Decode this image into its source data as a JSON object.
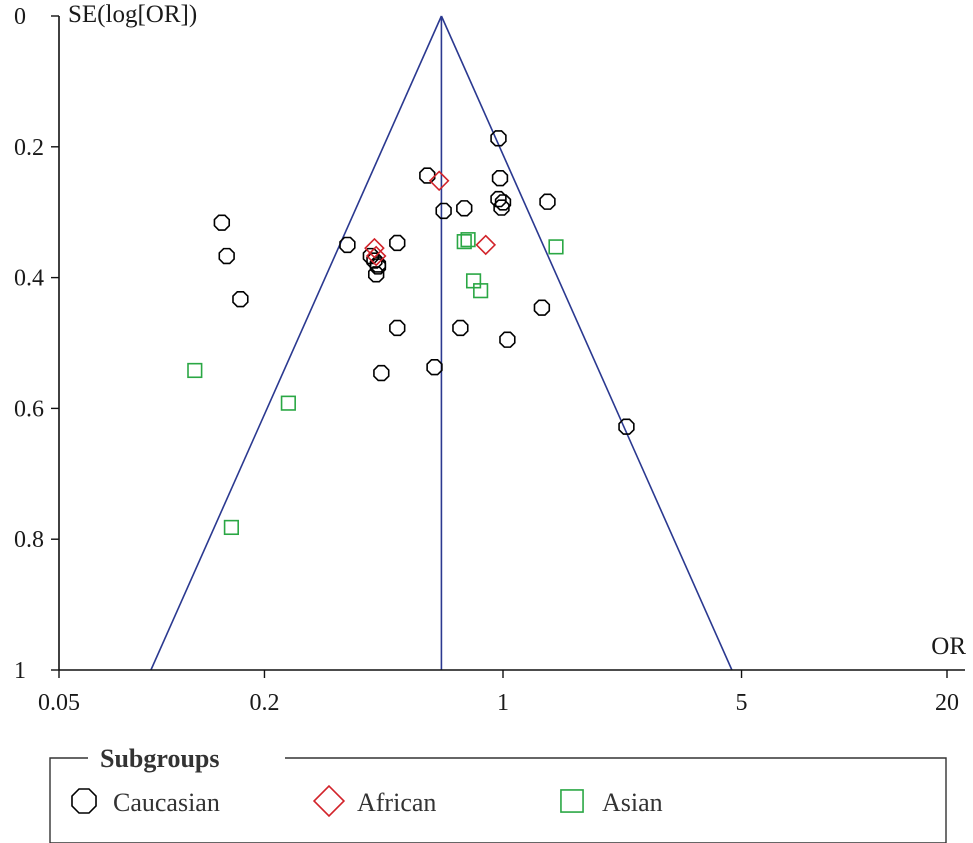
{
  "chart_data": {
    "type": "scatter",
    "ylabel": "SE(log[OR])",
    "xlabel": "OR",
    "x_scale": "log",
    "xlim": [
      0.05,
      20
    ],
    "ylim": [
      0,
      1
    ],
    "y_inverted": true,
    "x_ticks": [
      {
        "value": 0.05,
        "label": "0.05"
      },
      {
        "value": 0.2,
        "label": "0.2"
      },
      {
        "value": 1,
        "label": "1"
      },
      {
        "value": 5,
        "label": "5"
      },
      {
        "value": 20,
        "label": "20"
      }
    ],
    "y_ticks": [
      {
        "value": 0,
        "label": "0"
      },
      {
        "value": 0.2,
        "label": "0.2"
      },
      {
        "value": 0.4,
        "label": "0.4"
      },
      {
        "value": 0.6,
        "label": "0.6"
      },
      {
        "value": 0.8,
        "label": "0.8"
      },
      {
        "value": 1,
        "label": "1"
      }
    ],
    "funnel": {
      "pooled_or": 0.66,
      "se_max": 1,
      "color": "#2b3990"
    },
    "legend": {
      "title": "Subgroups",
      "placement": "bottom"
    },
    "series": [
      {
        "name": "Caucasian",
        "marker": "octagon",
        "color": "#000000",
        "points": [
          [
            0.97,
            0.187
          ],
          [
            0.98,
            0.248
          ],
          [
            0.6,
            0.244
          ],
          [
            0.97,
            0.28
          ],
          [
            1.0,
            0.285
          ],
          [
            0.99,
            0.293
          ],
          [
            0.77,
            0.294
          ],
          [
            0.67,
            0.298
          ],
          [
            1.35,
            0.284
          ],
          [
            0.15,
            0.316
          ],
          [
            0.35,
            0.35
          ],
          [
            0.49,
            0.347
          ],
          [
            0.155,
            0.367
          ],
          [
            0.41,
            0.367
          ],
          [
            0.42,
            0.374
          ],
          [
            0.43,
            0.38
          ],
          [
            0.43,
            0.383
          ],
          [
            0.425,
            0.395
          ],
          [
            0.17,
            0.433
          ],
          [
            1.3,
            0.446
          ],
          [
            0.49,
            0.477
          ],
          [
            0.75,
            0.477
          ],
          [
            1.03,
            0.495
          ],
          [
            0.63,
            0.537
          ],
          [
            0.44,
            0.546
          ],
          [
            2.3,
            0.628
          ]
        ]
      },
      {
        "name": "African",
        "marker": "diamond",
        "color": "#d2232a",
        "points": [
          [
            0.65,
            0.252
          ],
          [
            0.42,
            0.355
          ],
          [
            0.89,
            0.35
          ],
          [
            0.425,
            0.367
          ]
        ]
      },
      {
        "name": "Asian",
        "marker": "square",
        "color": "#2aa744",
        "points": [
          [
            0.77,
            0.345
          ],
          [
            0.79,
            0.342
          ],
          [
            0.82,
            0.405
          ],
          [
            0.86,
            0.42
          ],
          [
            1.43,
            0.353
          ],
          [
            0.125,
            0.542
          ],
          [
            0.235,
            0.592
          ],
          [
            0.16,
            0.782
          ]
        ]
      }
    ]
  }
}
